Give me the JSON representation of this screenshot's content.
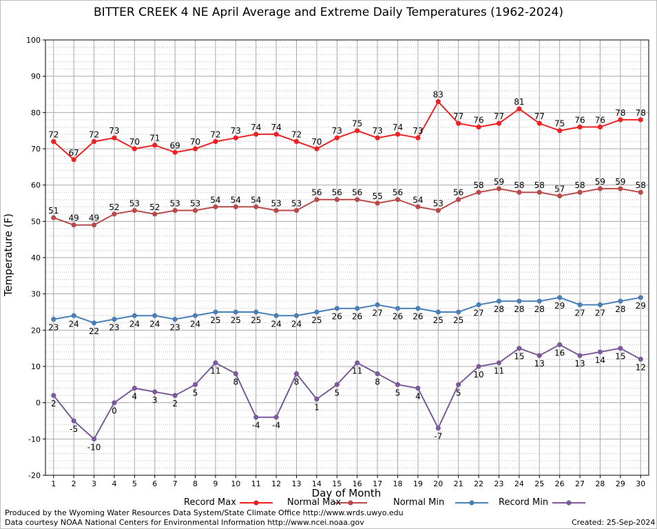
{
  "chart_data": {
    "type": "line",
    "title": "BITTER CREEK 4 NE April Average and Extreme Daily Temperatures (1962-2024)",
    "xlabel": "Day of Month",
    "ylabel": "Temperature (F)",
    "x": [
      1,
      2,
      3,
      4,
      5,
      6,
      7,
      8,
      9,
      10,
      11,
      12,
      13,
      14,
      15,
      16,
      17,
      18,
      19,
      20,
      21,
      22,
      23,
      24,
      25,
      26,
      27,
      28,
      29,
      30
    ],
    "xlim": [
      0.6,
      30.4
    ],
    "ylim": [
      -20,
      100
    ],
    "yticks": [
      -20,
      -10,
      0,
      10,
      20,
      30,
      40,
      50,
      60,
      70,
      80,
      90,
      100
    ],
    "grid": true,
    "legend_position": "bottom",
    "series": [
      {
        "name": "Record Max",
        "color": "#ee2222",
        "label_pos": "above",
        "values": [
          72,
          67,
          72,
          73,
          70,
          71,
          69,
          70,
          72,
          73,
          74,
          74,
          72,
          70,
          73,
          75,
          73,
          74,
          73,
          83,
          77,
          76,
          77,
          81,
          77,
          75,
          76,
          76,
          78,
          78
        ]
      },
      {
        "name": "Normal Max",
        "color": "#b94a4a",
        "label_pos": "above",
        "values": [
          51,
          49,
          49,
          52,
          53,
          52,
          53,
          53,
          54,
          54,
          54,
          53,
          53,
          56,
          56,
          56,
          55,
          56,
          54,
          53,
          56,
          58,
          59,
          58,
          58,
          57,
          58,
          59,
          59,
          58
        ]
      },
      {
        "name": "Normal Min",
        "color": "#4a7fb5",
        "label_pos": "below",
        "values": [
          23,
          24,
          22,
          23,
          24,
          24,
          23,
          24,
          25,
          25,
          25,
          24,
          24,
          25,
          26,
          26,
          27,
          26,
          26,
          25,
          25,
          27,
          28,
          28,
          28,
          29,
          27,
          27,
          28,
          29
        ]
      },
      {
        "name": "Record Min",
        "color": "#7a5a9a",
        "label_pos": "below",
        "values": [
          2,
          -5,
          -10,
          0,
          4,
          3,
          2,
          5,
          11,
          8,
          -4,
          -4,
          8,
          1,
          5,
          11,
          8,
          5,
          4,
          -7,
          5,
          10,
          11,
          15,
          13,
          16,
          13,
          14,
          15,
          12
        ]
      }
    ]
  },
  "footer": {
    "produced_by": "Produced by the Wyoming Water Resources Data System/State Climate Office http://www.wrds.uwyo.edu",
    "courtesy": "Data courtesy NOAA National Centers for Environmental Information http://www.ncei.noaa.gov",
    "created": "Created:  25-Sep-2024"
  }
}
